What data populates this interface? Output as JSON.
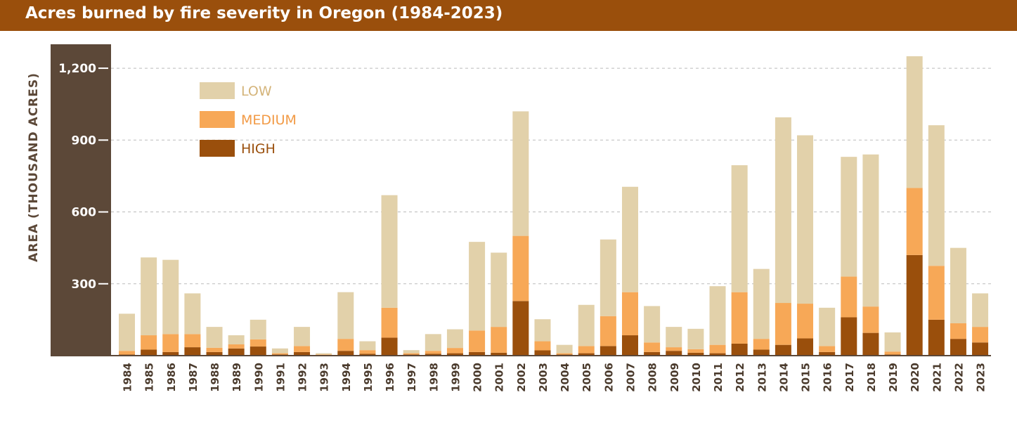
{
  "colors": {
    "title_bg": "#9a4f0c",
    "axis_bg": "#5c4838",
    "low": "#e2d1aa",
    "medium": "#f7a857",
    "high": "#9a4f0c",
    "grid": "#bbbbbb"
  },
  "chart_data": {
    "type": "bar",
    "stacked": true,
    "title": "Acres burned by fire severity in Oregon (1984-2023)",
    "ylabel": "AREA (THOUSAND ACRES)",
    "xlabel": "",
    "ylim": [
      0,
      1300
    ],
    "yticks": [
      300,
      600,
      900,
      1200
    ],
    "ytick_labels": [
      "300",
      "600",
      "900",
      "1,200"
    ],
    "grid": true,
    "legend_position": "top-left",
    "categories": [
      "1984",
      "1985",
      "1986",
      "1987",
      "1988",
      "1989",
      "1990",
      "1991",
      "1992",
      "1993",
      "1994",
      "1995",
      "1996",
      "1997",
      "1998",
      "1999",
      "2000",
      "2001",
      "2002",
      "2003",
      "2004",
      "2005",
      "2006",
      "2007",
      "2008",
      "2009",
      "2010",
      "2011",
      "2012",
      "2013",
      "2014",
      "2015",
      "2016",
      "2017",
      "2018",
      "2019",
      "2020",
      "2021",
      "2022",
      "2023"
    ],
    "series": [
      {
        "name": "HIGH",
        "values": [
          5,
          25,
          15,
          35,
          15,
          30,
          38,
          5,
          15,
          3,
          20,
          8,
          75,
          5,
          8,
          10,
          15,
          12,
          228,
          22,
          5,
          10,
          40,
          85,
          15,
          20,
          12,
          10,
          50,
          25,
          45,
          72,
          15,
          160,
          95,
          5,
          420,
          150,
          70,
          55
        ]
      },
      {
        "name": "MEDIUM",
        "values": [
          15,
          60,
          75,
          55,
          18,
          17,
          30,
          5,
          25,
          2,
          50,
          15,
          125,
          5,
          12,
          22,
          90,
          108,
          272,
          38,
          5,
          30,
          125,
          180,
          40,
          15,
          15,
          35,
          215,
          45,
          175,
          145,
          25,
          170,
          110,
          12,
          280,
          225,
          65,
          65
        ]
      },
      {
        "name": "LOW",
        "values": [
          155,
          325,
          310,
          170,
          87,
          38,
          82,
          20,
          80,
          5,
          195,
          37,
          470,
          13,
          70,
          78,
          370,
          310,
          520,
          92,
          35,
          172,
          320,
          440,
          152,
          85,
          85,
          245,
          530,
          292,
          775,
          703,
          160,
          500,
          635,
          80,
          550,
          587,
          315,
          140
        ]
      }
    ]
  }
}
